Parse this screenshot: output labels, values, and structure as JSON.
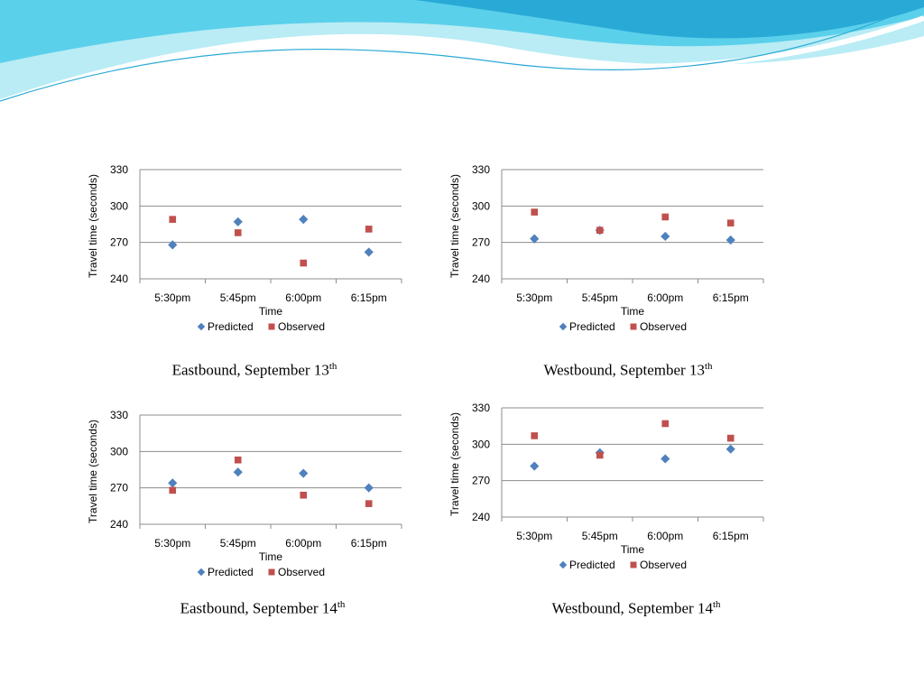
{
  "legend": {
    "predicted": "Predicted",
    "observed": "Observed"
  },
  "colors": {
    "predicted": "#4f81bd",
    "observed": "#c0504d",
    "grid": "#8c8c8c",
    "wave_light": "#b9ecf5",
    "wave_mid": "#5bd0ea",
    "wave_dark": "#29a9d6"
  },
  "chart_data": [
    {
      "type": "scatter",
      "categories": [
        "5:30pm",
        "5:45pm",
        "6:00pm",
        "6:15pm"
      ],
      "series": [
        {
          "name": "Predicted",
          "marker": "diamond",
          "values": [
            268,
            287,
            289,
            262
          ]
        },
        {
          "name": "Observed",
          "marker": "square",
          "values": [
            289,
            278,
            253,
            281
          ]
        }
      ],
      "xlabel": "Time",
      "ylabel": "Travel time (seconds)",
      "ylim": [
        240,
        330
      ],
      "yticks": [
        240,
        270,
        300,
        330
      ],
      "grid": true,
      "legend_position": "bottom",
      "caption": {
        "text": "Eastbound, September 13",
        "sup": "th"
      }
    },
    {
      "type": "scatter",
      "categories": [
        "5:30pm",
        "5:45pm",
        "6:00pm",
        "6:15pm"
      ],
      "series": [
        {
          "name": "Predicted",
          "marker": "diamond",
          "values": [
            273,
            280,
            275,
            272
          ]
        },
        {
          "name": "Observed",
          "marker": "square",
          "values": [
            295,
            280,
            291,
            286
          ]
        }
      ],
      "xlabel": "Time",
      "ylabel": "Travel time (seconds)",
      "ylim": [
        240,
        330
      ],
      "yticks": [
        240,
        270,
        300,
        330
      ],
      "grid": true,
      "legend_position": "bottom",
      "caption": {
        "text": "Westbound, September 13",
        "sup": "th"
      }
    },
    {
      "type": "scatter",
      "categories": [
        "5:30pm",
        "5:45pm",
        "6:00pm",
        "6:15pm"
      ],
      "series": [
        {
          "name": "Predicted",
          "marker": "diamond",
          "values": [
            274,
            283,
            282,
            270
          ]
        },
        {
          "name": "Observed",
          "marker": "square",
          "values": [
            268,
            293,
            264,
            257
          ]
        }
      ],
      "xlabel": "Time",
      "ylabel": "Travel time (seconds)",
      "ylim": [
        240,
        330
      ],
      "yticks": [
        240,
        270,
        300,
        330
      ],
      "grid": true,
      "legend_position": "bottom",
      "caption": {
        "text": "Eastbound, September 14",
        "sup": "th"
      }
    },
    {
      "type": "scatter",
      "categories": [
        "5:30pm",
        "5:45pm",
        "6:00pm",
        "6:15pm"
      ],
      "series": [
        {
          "name": "Predicted",
          "marker": "diamond",
          "values": [
            282,
            293,
            288,
            296
          ]
        },
        {
          "name": "Observed",
          "marker": "square",
          "values": [
            307,
            291,
            317,
            305
          ]
        }
      ],
      "xlabel": "Time",
      "ylabel": "Travel time (seconds)",
      "ylim": [
        240,
        330
      ],
      "yticks": [
        240,
        270,
        300,
        330
      ],
      "grid": true,
      "legend_position": "bottom",
      "caption": {
        "text": "Westbound, September 14",
        "sup": "th"
      }
    }
  ]
}
